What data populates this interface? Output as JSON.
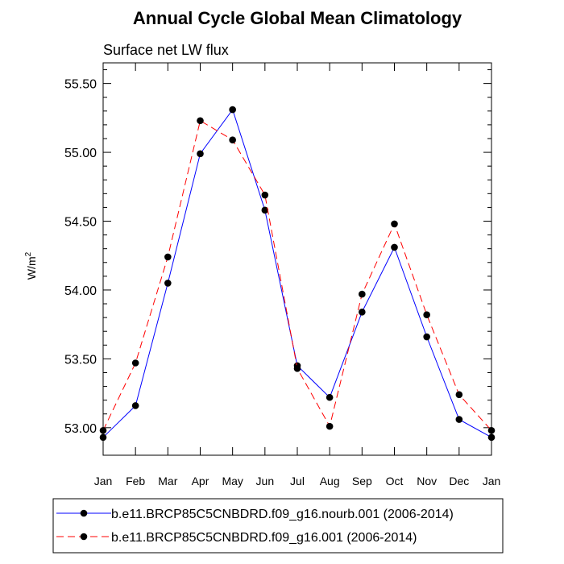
{
  "chart_data": {
    "type": "line",
    "title": "Annual Cycle Global Mean Climatology",
    "subtitle": "Surface net LW flux",
    "ylabel": "W/m",
    "ylabel_superscript": "2",
    "xlabel": "",
    "categories": [
      "Jan",
      "Feb",
      "Mar",
      "Apr",
      "May",
      "Jun",
      "Jul",
      "Aug",
      "Sep",
      "Oct",
      "Nov",
      "Dec",
      "Jan"
    ],
    "ylim": [
      52.8,
      55.65
    ],
    "yticks": [
      53.0,
      53.5,
      54.0,
      54.5,
      55.0,
      55.5
    ],
    "ytick_labels": [
      "53.00",
      "53.50",
      "54.00",
      "54.50",
      "55.00",
      "55.50"
    ],
    "grid": false,
    "legend_position": "bottom",
    "series": [
      {
        "name": "b.e11.BRCP85C5CNBDRD.f09_g16.nourb.001 (2006-2014)",
        "color": "#0000ff",
        "dash": "solid",
        "values": [
          52.93,
          53.16,
          54.05,
          54.99,
          55.31,
          54.58,
          53.45,
          53.22,
          53.84,
          54.31,
          53.66,
          53.06,
          52.93
        ]
      },
      {
        "name": "b.e11.BRCP85C5CNBDRD.f09_g16.001 (2006-2014)",
        "color": "#ff0000",
        "dash": "dashed",
        "values": [
          52.98,
          53.47,
          54.24,
          55.23,
          55.09,
          54.69,
          53.43,
          53.01,
          53.97,
          54.48,
          53.82,
          53.24,
          52.98
        ]
      }
    ]
  }
}
